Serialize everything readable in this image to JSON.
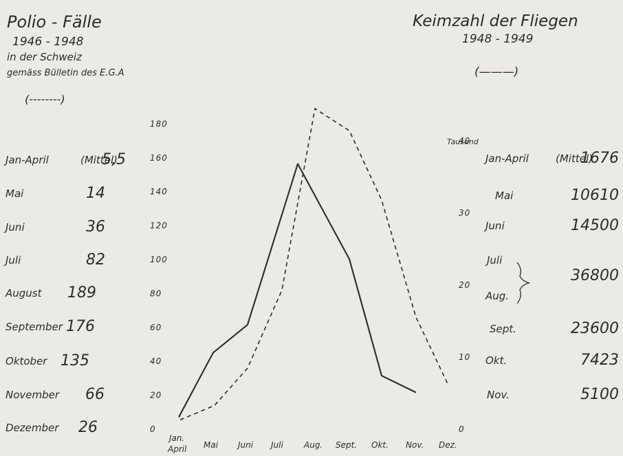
{
  "chart_data": {
    "type": "line",
    "left_title": {
      "line1": "Polio - Fälle",
      "line2": "1946 - 1948",
      "line3": "in der Schweiz",
      "line4": "gemäss Bülletin des E.G.A",
      "legend": "(--------)"
    },
    "right_title": {
      "line1": "Keimzahl der Fliegen",
      "line2": "1948 - 1949",
      "legend": "(———)",
      "unit": "Tausend"
    },
    "left_axis": {
      "ticks": [
        "180",
        "160",
        "140",
        "120",
        "100",
        "80",
        "60",
        "40",
        "20",
        "0"
      ],
      "ylim": [
        0,
        180
      ]
    },
    "right_axis": {
      "ticks": [
        "40",
        "30",
        "20",
        "10",
        "0"
      ],
      "ylim": [
        0,
        45
      ]
    },
    "x_labels": [
      "Jan.",
      "April",
      "Mai",
      "Juni",
      "Juli",
      "Aug.",
      "Sept.",
      "Okt.",
      "Nov.",
      "Dez."
    ],
    "left_table": [
      {
        "label": "Jan-April",
        "note": "(Mittel)",
        "value": "5,5"
      },
      {
        "label": "Mai",
        "note": "",
        "value": "14"
      },
      {
        "label": "Juni",
        "note": "",
        "value": "36"
      },
      {
        "label": "Juli",
        "note": "",
        "value": "82"
      },
      {
        "label": "August",
        "note": "",
        "value": "189"
      },
      {
        "label": "September",
        "note": "",
        "value": "176"
      },
      {
        "label": "Oktober",
        "note": "",
        "value": "135"
      },
      {
        "label": "November",
        "note": "",
        "value": "66"
      },
      {
        "label": "Dezember",
        "note": "",
        "value": "26"
      }
    ],
    "right_table": [
      {
        "label": "Jan-April",
        "note": "(Mittel)",
        "value": "1676"
      },
      {
        "label": "Mai",
        "note": "",
        "value": "10610"
      },
      {
        "label": "Juni",
        "note": "",
        "value": "14500"
      },
      {
        "label": "Juli",
        "note": "",
        "value": ""
      },
      {
        "label": "Aug.",
        "note": "",
        "value": "36800"
      },
      {
        "label": "Sept.",
        "note": "",
        "value": "23600"
      },
      {
        "label": "Okt.",
        "note": "",
        "value": "7423"
      },
      {
        "label": "Nov.",
        "note": "",
        "value": "5100"
      }
    ],
    "series": [
      {
        "style": "dashed",
        "axis": "left",
        "x": [
          "Jan-April",
          "Mai",
          "Juni",
          "Juli",
          "Aug.",
          "Sept.",
          "Okt.",
          "Nov.",
          "Dez."
        ],
        "values": [
          5.5,
          14,
          36,
          82,
          189,
          176,
          135,
          66,
          26
        ]
      },
      {
        "style": "solid",
        "axis": "right",
        "x": [
          "Jan-April",
          "Mai",
          "Juni",
          "Juli",
          "Aug.",
          "Sept.",
          "Okt.",
          "Nov."
        ],
        "values": [
          1.676,
          10.61,
          14.5,
          36.8,
          36.8,
          23.6,
          7.423,
          5.1
        ]
      }
    ]
  }
}
